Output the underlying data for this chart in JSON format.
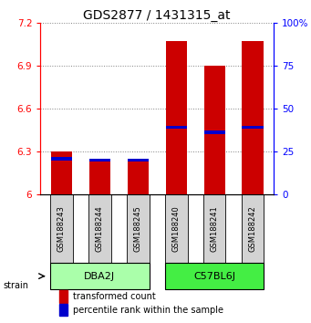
{
  "title": "GDS2877 / 1431315_at",
  "samples": [
    "GSM188243",
    "GSM188244",
    "GSM188245",
    "GSM188240",
    "GSM188241",
    "GSM188242"
  ],
  "red_values": [
    6.3,
    6.24,
    6.24,
    7.07,
    6.9,
    7.07
  ],
  "blue_values": [
    6.235,
    6.225,
    6.225,
    6.455,
    6.42,
    6.455
  ],
  "ylim_left": [
    6.0,
    7.2
  ],
  "yticks_left": [
    6.0,
    6.3,
    6.6,
    6.9,
    7.2
  ],
  "ytick_labels_left": [
    "6",
    "6.3",
    "6.6",
    "6.9",
    "7.2"
  ],
  "ylim_right": [
    0,
    100
  ],
  "yticks_right": [
    0,
    25,
    50,
    75,
    100
  ],
  "ytick_labels_right": [
    "0",
    "25",
    "50",
    "75",
    "100%"
  ],
  "groups": [
    {
      "label": "DBA2J",
      "indices": [
        0,
        1,
        2
      ],
      "color": "#AAFFAA"
    },
    {
      "label": "C57BL6J",
      "indices": [
        3,
        4,
        5
      ],
      "color": "#44EE44"
    }
  ],
  "bar_color": "#CC0000",
  "blue_color": "#0000CC",
  "bar_width": 0.55,
  "sample_area_color": "#D3D3D3",
  "legend_red_label": "transformed count",
  "legend_blue_label": "percentile rank within the sample",
  "strain_label": "strain",
  "title_fontsize": 10,
  "tick_fontsize": 7.5,
  "sample_fontsize": 6,
  "group_fontsize": 8,
  "legend_fontsize": 7
}
